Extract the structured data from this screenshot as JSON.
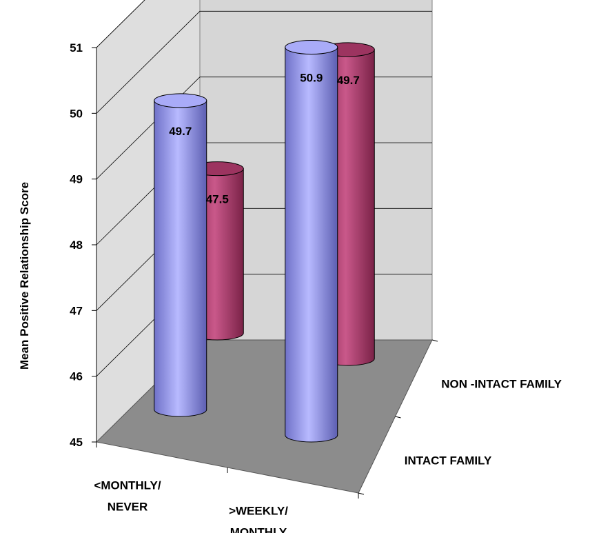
{
  "chart_data": {
    "type": "bar",
    "style": "3d-cylinder",
    "ylabel": "Mean Positive Relationship Score",
    "ylim": [
      45,
      51
    ],
    "yticks": [
      "45",
      "46",
      "47",
      "48",
      "49",
      "50",
      "51"
    ],
    "grid": true,
    "categories": [
      [
        "<MONTHLY/",
        "NEVER"
      ],
      [
        ">WEEKLY/",
        "MONTHLY"
      ]
    ],
    "series": [
      {
        "name": "INTACT FAMILY",
        "color": "#9a9cf5",
        "values": [
          49.7,
          50.9
        ],
        "labels": [
          "49.7",
          "50.9"
        ]
      },
      {
        "name": "NON -INTACT FAMILY",
        "color": "#b5426f",
        "values": [
          47.5,
          49.7
        ],
        "labels": [
          "47.5",
          "49.7"
        ]
      }
    ],
    "colors": {
      "back_wall": "#d6d6d6",
      "side_wall": "#dedede",
      "floor": "#8c8c8c"
    }
  }
}
